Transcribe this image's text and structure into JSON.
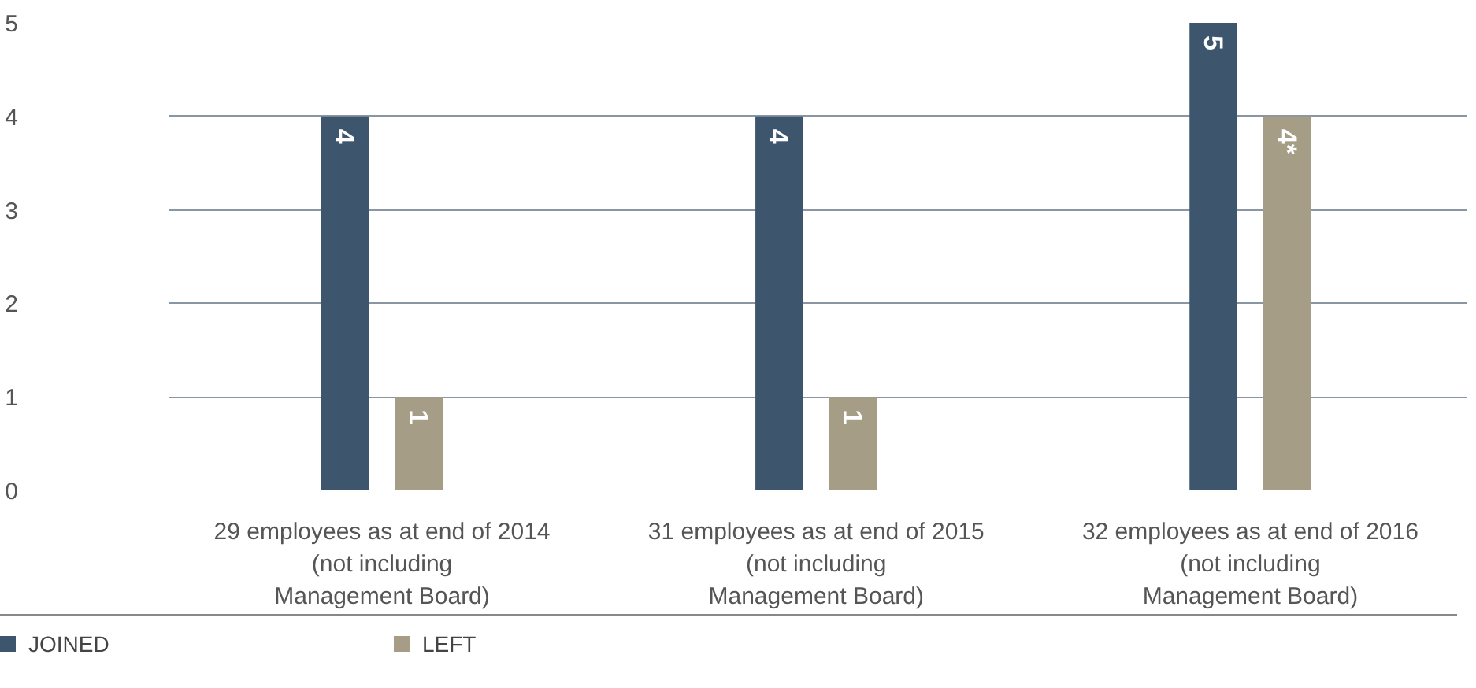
{
  "chart_data": {
    "type": "bar",
    "categories": [
      "29 employees as at end of 2014\n(not including\nManagement Board)",
      "31 employees as at end of 2015\n(not including\nManagement Board)",
      "32 employees as at end of 2016\n(not including\nManagement Board)"
    ],
    "series": [
      {
        "name": "JOINED",
        "color": "#3d566e",
        "values": [
          4,
          4,
          5
        ],
        "value_labels": [
          "4",
          "4",
          "5"
        ]
      },
      {
        "name": "LEFT",
        "color": "#a59d86",
        "values": [
          1,
          1,
          4
        ],
        "value_labels": [
          "1",
          "1",
          "4*"
        ]
      }
    ],
    "ylim": [
      0,
      5
    ],
    "yticks": [
      0,
      1,
      2,
      3,
      4,
      5
    ],
    "grid": "y",
    "legend": "bottom"
  }
}
